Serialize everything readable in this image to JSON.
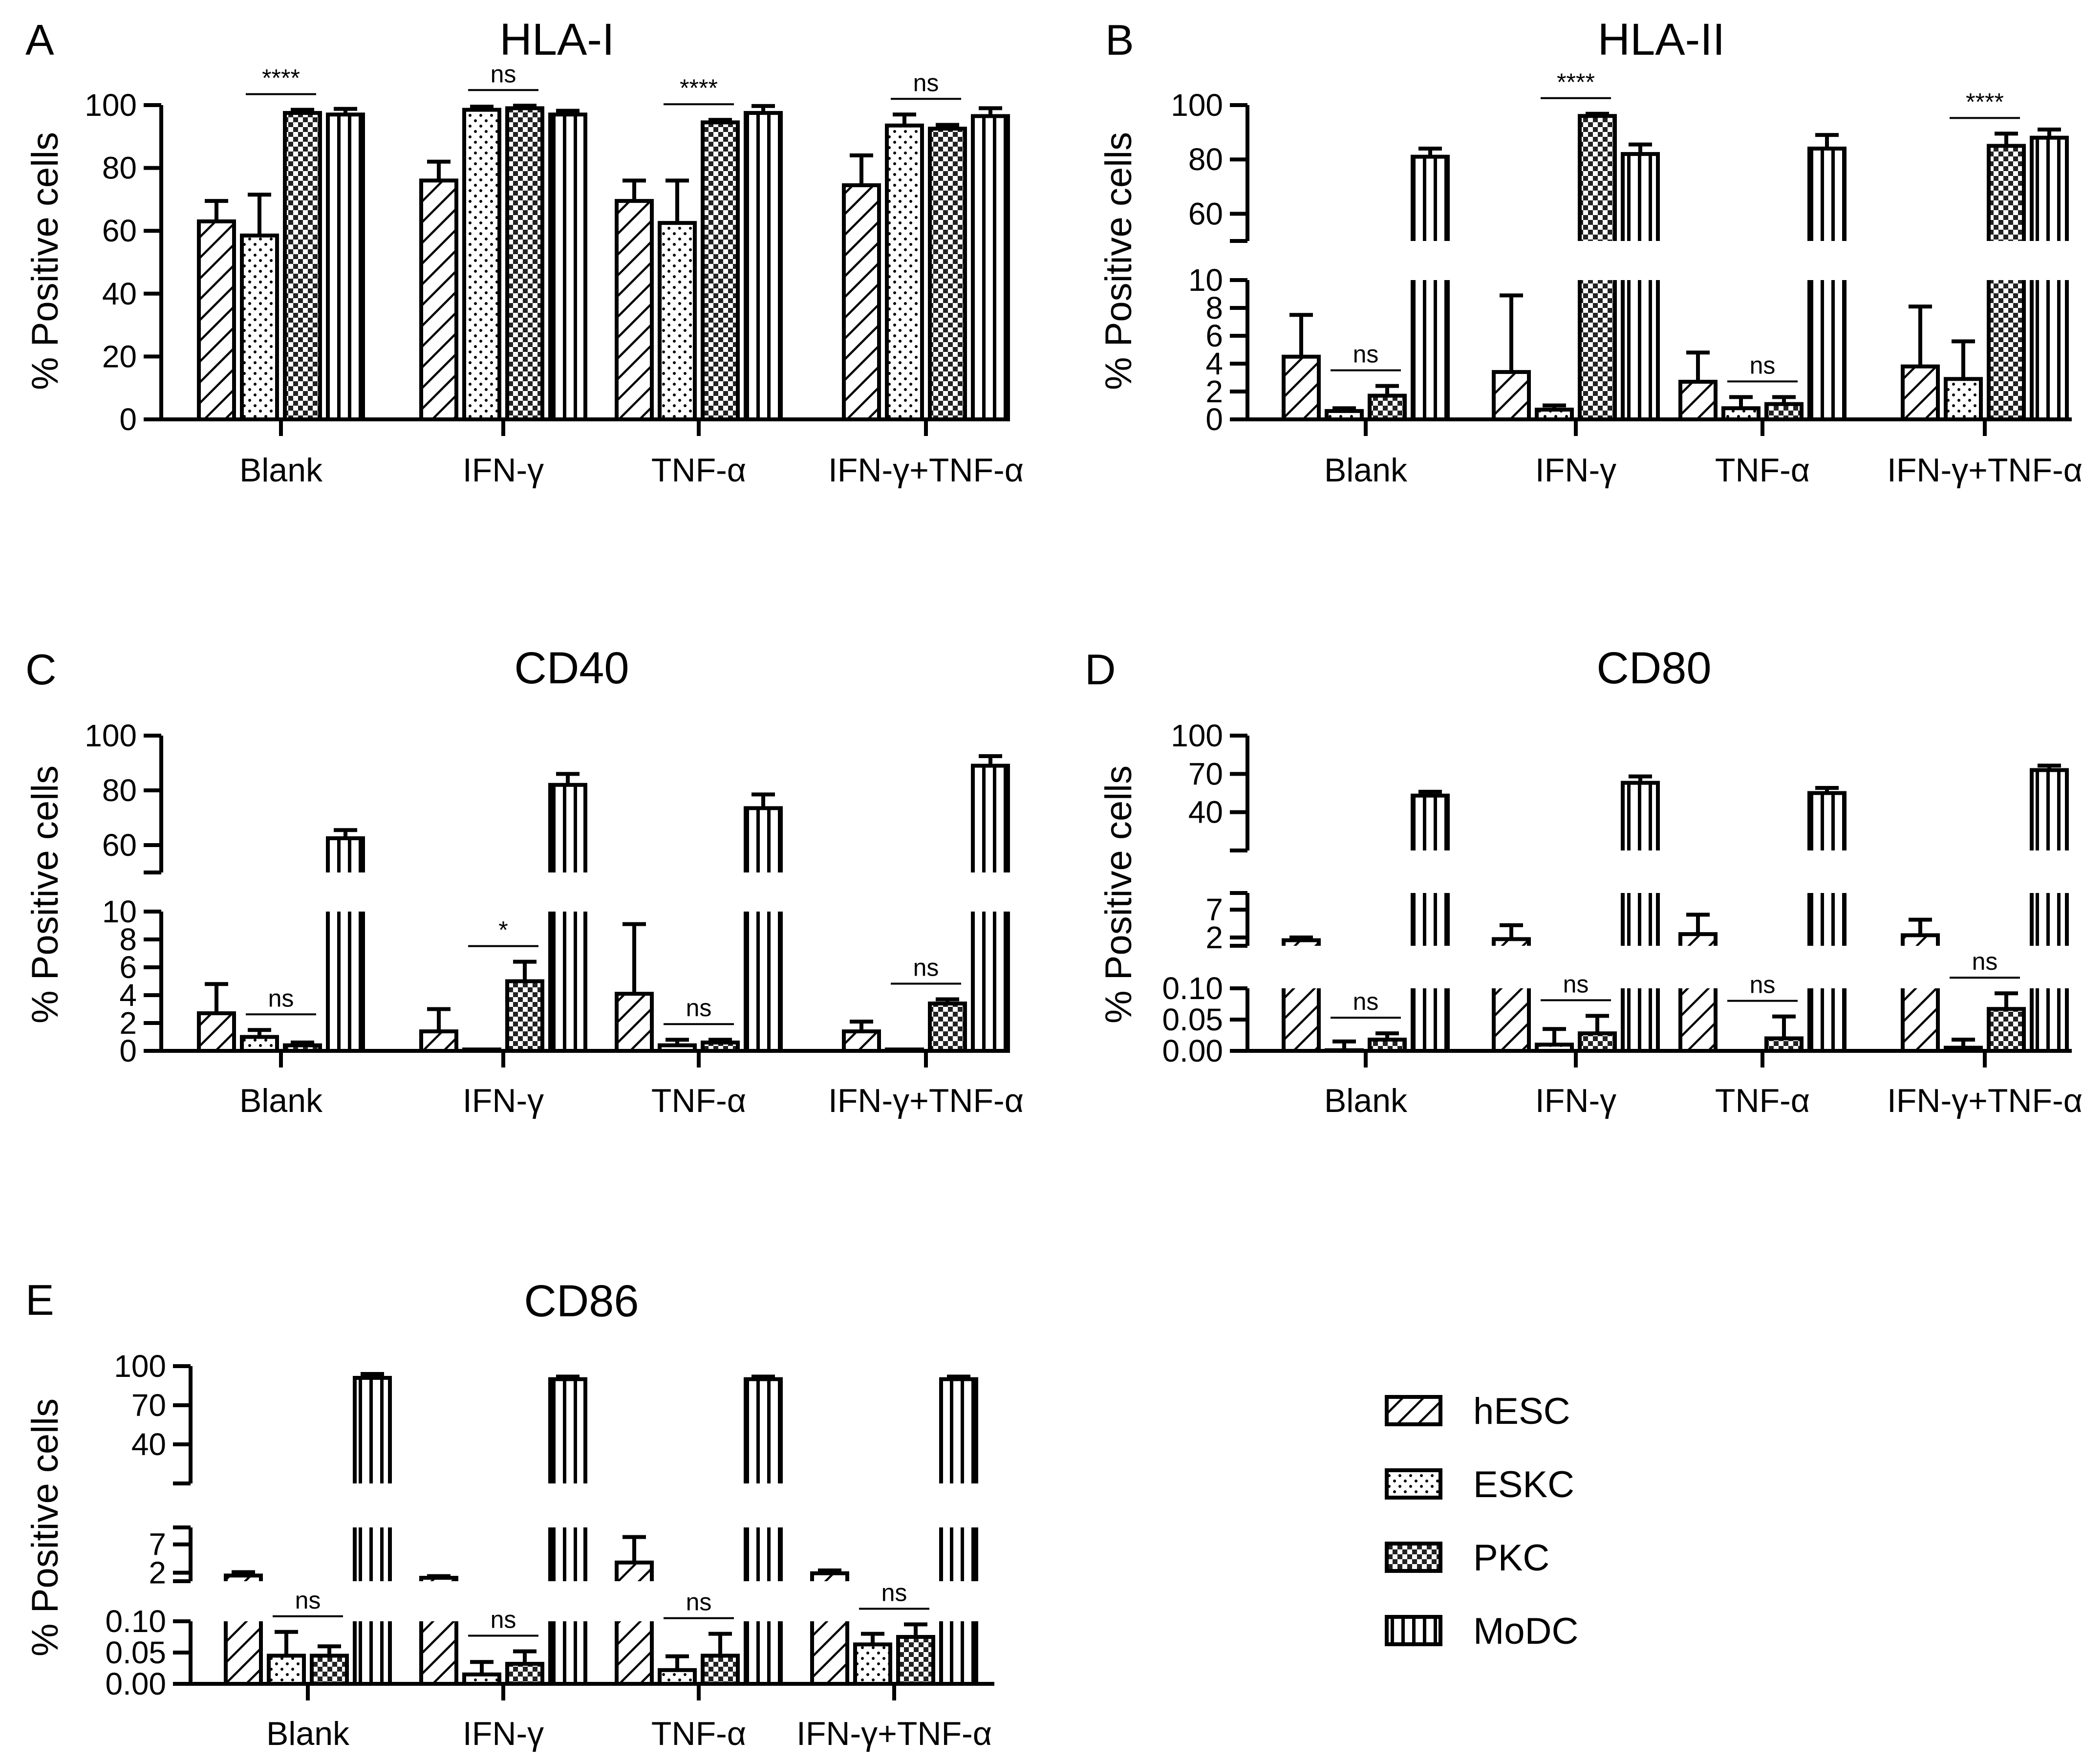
{
  "legend": [
    {
      "name": "hESC",
      "pattern": "hatch"
    },
    {
      "name": "ESKC",
      "pattern": "dots"
    },
    {
      "name": "PKC",
      "pattern": "check"
    },
    {
      "name": "MoDC",
      "pattern": "vlines"
    }
  ],
  "chart_data": [
    {
      "id": "A",
      "title": "HLA-I",
      "type": "bar",
      "ylabel": "% Positive cells",
      "categories": [
        "Blank",
        "IFN-γ",
        "TNF-α",
        "IFN-γ+TNF-α"
      ],
      "segments": [
        {
          "min": 0,
          "max": 100,
          "ticks": [
            {
              "v": 0,
              "label": "0"
            },
            {
              "v": 20,
              "label": "20"
            },
            {
              "v": 40,
              "label": "40"
            },
            {
              "v": 60,
              "label": "60"
            },
            {
              "v": 80,
              "label": "80"
            },
            {
              "v": 100,
              "label": "100"
            }
          ]
        }
      ],
      "series": [
        {
          "name": "hESC",
          "values": [
            63,
            76,
            69.5,
            74.5
          ],
          "errors": [
            6.5,
            6,
            6.5,
            9.5
          ]
        },
        {
          "name": "ESKC",
          "values": [
            58.5,
            98.5,
            62.5,
            93.5
          ],
          "errors": [
            13,
            1,
            13.5,
            3.5
          ]
        },
        {
          "name": "PKC",
          "values": [
            97.5,
            99,
            94.5,
            92.5
          ],
          "errors": [
            1,
            0.8,
            0.8,
            1.2
          ]
        },
        {
          "name": "MoDC",
          "values": [
            97,
            97,
            97.5,
            96.5
          ],
          "errors": [
            1.8,
            1.2,
            2.2,
            2.5
          ]
        }
      ],
      "significance": [
        {
          "category": 0,
          "from": 1,
          "to": 2,
          "label": "****"
        },
        {
          "category": 1,
          "from": 1,
          "to": 2,
          "label": "ns"
        },
        {
          "category": 2,
          "from": 1,
          "to": 2,
          "label": "****"
        },
        {
          "category": 3,
          "from": 1,
          "to": 2,
          "label": "ns"
        }
      ]
    },
    {
      "id": "B",
      "title": "HLA-II",
      "type": "bar",
      "ylabel": "% Positive cells",
      "categories": [
        "Blank",
        "IFN-γ",
        "TNF-α",
        "IFN-γ+TNF-α"
      ],
      "segments": [
        {
          "min": 0,
          "max": 10,
          "ticks": [
            {
              "v": 0,
              "label": "0"
            },
            {
              "v": 2,
              "label": "2"
            },
            {
              "v": 4,
              "label": "4"
            },
            {
              "v": 6,
              "label": "6"
            },
            {
              "v": 8,
              "label": "8"
            },
            {
              "v": 10,
              "label": "10"
            }
          ]
        },
        {
          "min": 50,
          "max": 100,
          "ticks": [
            {
              "v": 60,
              "label": "60"
            },
            {
              "v": 80,
              "label": "80"
            },
            {
              "v": 100,
              "label": "100"
            }
          ]
        }
      ],
      "series": [
        {
          "name": "hESC",
          "values": [
            4.5,
            3.4,
            2.7,
            3.8
          ],
          "errors": [
            3,
            5.5,
            2.1,
            4.3
          ]
        },
        {
          "name": "ESKC",
          "values": [
            0.6,
            0.7,
            0.8,
            2.9
          ],
          "errors": [
            0.2,
            0.3,
            0.8,
            2.7
          ]
        },
        {
          "name": "PKC",
          "values": [
            1.7,
            96,
            1.1,
            85
          ],
          "errors": [
            0.7,
            0.8,
            0.5,
            4.5
          ]
        },
        {
          "name": "MoDC",
          "values": [
            81,
            82,
            84,
            88
          ],
          "errors": [
            3,
            3.5,
            5,
            3
          ]
        }
      ],
      "significance": [
        {
          "category": 0,
          "from": 1,
          "to": 2,
          "label": "ns"
        },
        {
          "category": 1,
          "from": 1,
          "to": 2,
          "label": "****"
        },
        {
          "category": 2,
          "from": 1,
          "to": 2,
          "label": "ns"
        },
        {
          "category": 3,
          "from": 1,
          "to": 2,
          "label": "****"
        }
      ]
    },
    {
      "id": "C",
      "title": "CD40",
      "type": "bar",
      "ylabel": "% Positive cells",
      "categories": [
        "Blank",
        "IFN-γ",
        "TNF-α",
        "IFN-γ+TNF-α"
      ],
      "segments": [
        {
          "min": 0,
          "max": 10,
          "ticks": [
            {
              "v": 0,
              "label": "0"
            },
            {
              "v": 2,
              "label": "2"
            },
            {
              "v": 4,
              "label": "4"
            },
            {
              "v": 6,
              "label": "6"
            },
            {
              "v": 8,
              "label": "8"
            },
            {
              "v": 10,
              "label": "10"
            }
          ]
        },
        {
          "min": 50,
          "max": 100,
          "ticks": [
            {
              "v": 60,
              "label": "60"
            },
            {
              "v": 80,
              "label": "80"
            },
            {
              "v": 100,
              "label": "100"
            }
          ]
        }
      ],
      "series": [
        {
          "name": "hESC",
          "values": [
            2.7,
            1.4,
            4.1,
            1.4
          ],
          "errors": [
            2.1,
            1.6,
            5,
            0.7
          ]
        },
        {
          "name": "ESKC",
          "values": [
            1,
            0.1,
            0.4,
            0.1
          ],
          "errors": [
            0.5,
            0,
            0.4,
            0
          ]
        },
        {
          "name": "PKC",
          "values": [
            0.4,
            5,
            0.6,
            3.4
          ],
          "errors": [
            0.2,
            1.4,
            0.2,
            0.3
          ]
        },
        {
          "name": "MoDC",
          "values": [
            62.5,
            82,
            73.5,
            89
          ],
          "errors": [
            3,
            4,
            5,
            3.5
          ]
        }
      ],
      "significance": [
        {
          "category": 0,
          "from": 1,
          "to": 2,
          "label": "ns"
        },
        {
          "category": 1,
          "from": 1,
          "to": 2,
          "label": "*"
        },
        {
          "category": 2,
          "from": 1,
          "to": 2,
          "label": "ns"
        },
        {
          "category": 3,
          "from": 1,
          "to": 2,
          "label": "ns"
        }
      ]
    },
    {
      "id": "D",
      "title": "CD80",
      "type": "bar",
      "ylabel": "% Positive cells",
      "categories": [
        "Blank",
        "IFN-γ",
        "TNF-α",
        "IFN-γ+TNF-α"
      ],
      "segments": [
        {
          "min": 0,
          "max": 0.1,
          "ticks": [
            {
              "v": 0,
              "label": "0.00"
            },
            {
              "v": 0.05,
              "label": "0.05"
            },
            {
              "v": 0.1,
              "label": "0.10"
            }
          ]
        },
        {
          "min": 0.5,
          "max": 10,
          "ticks": [
            {
              "v": 2,
              "label": "2"
            },
            {
              "v": 7,
              "label": "7"
            }
          ]
        },
        {
          "min": 10,
          "max": 100,
          "ticks": [
            {
              "v": 40,
              "label": "40"
            },
            {
              "v": 70,
              "label": "70"
            },
            {
              "v": 100,
              "label": "100"
            }
          ]
        }
      ],
      "series": [
        {
          "name": "hESC",
          "values": [
            1.5,
            1.7,
            2.6,
            2.4
          ],
          "errors": [
            0.5,
            2.5,
            3.5,
            2.8
          ]
        },
        {
          "name": "ESKC",
          "values": [
            0.001,
            0.01,
            0,
            0.005
          ],
          "errors": [
            0.014,
            0.025,
            0,
            0.013
          ]
        },
        {
          "name": "PKC",
          "values": [
            0.018,
            0.028,
            0.02,
            0.067
          ],
          "errors": [
            0.01,
            0.028,
            0.035,
            0.025
          ]
        },
        {
          "name": "MoDC",
          "values": [
            53,
            63,
            55,
            73
          ],
          "errors": [
            3,
            5,
            4,
            3.5
          ]
        }
      ],
      "significance": [
        {
          "category": 0,
          "from": 1,
          "to": 2,
          "label": "ns"
        },
        {
          "category": 1,
          "from": 1,
          "to": 2,
          "label": "ns"
        },
        {
          "category": 2,
          "from": 1,
          "to": 2,
          "label": "ns"
        },
        {
          "category": 3,
          "from": 1,
          "to": 2,
          "label": "ns"
        }
      ]
    },
    {
      "id": "E",
      "title": "CD86",
      "type": "bar",
      "ylabel": "% Positive cells",
      "categories": [
        "Blank",
        "IFN-γ",
        "TNF-α",
        "IFN-γ+TNF-α"
      ],
      "segments": [
        {
          "min": 0,
          "max": 0.1,
          "ticks": [
            {
              "v": 0,
              "label": "0.00"
            },
            {
              "v": 0.05,
              "label": "0.05"
            },
            {
              "v": 0.1,
              "label": "0.10"
            }
          ]
        },
        {
          "min": 0.5,
          "max": 10,
          "ticks": [
            {
              "v": 2,
              "label": "2"
            },
            {
              "v": 7,
              "label": "7"
            }
          ]
        },
        {
          "min": 10,
          "max": 100,
          "ticks": [
            {
              "v": 40,
              "label": "40"
            },
            {
              "v": 70,
              "label": "70"
            },
            {
              "v": 100,
              "label": "100"
            }
          ]
        }
      ],
      "series": [
        {
          "name": "hESC",
          "values": [
            1.5,
            1.1,
            3.8,
            1.9
          ],
          "errors": [
            0.6,
            0.3,
            4.5,
            0.5
          ]
        },
        {
          "name": "ESKC",
          "values": [
            0.045,
            0.015,
            0.022,
            0.063
          ],
          "errors": [
            0.038,
            0.02,
            0.022,
            0.017
          ]
        },
        {
          "name": "PKC",
          "values": [
            0.045,
            0.032,
            0.045,
            0.075
          ],
          "errors": [
            0.015,
            0.02,
            0.035,
            0.02
          ]
        },
        {
          "name": "MoDC",
          "values": [
            91,
            90,
            90,
            90
          ],
          "errors": [
            3,
            2,
            2,
            2
          ]
        }
      ],
      "significance": [
        {
          "category": 0,
          "from": 1,
          "to": 2,
          "label": "ns"
        },
        {
          "category": 1,
          "from": 1,
          "to": 2,
          "label": "ns"
        },
        {
          "category": 2,
          "from": 1,
          "to": 2,
          "label": "ns"
        },
        {
          "category": 3,
          "from": 1,
          "to": 2,
          "label": "ns"
        }
      ]
    }
  ]
}
